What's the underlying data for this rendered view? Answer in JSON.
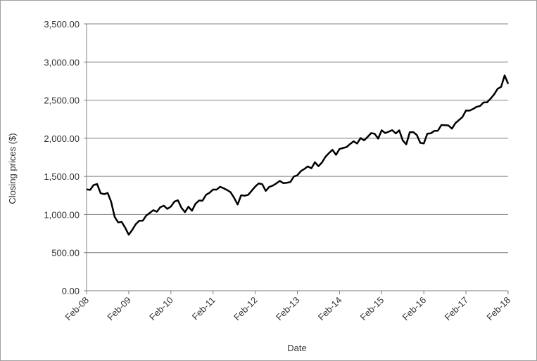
{
  "chart_data": {
    "type": "line",
    "x_label": "Date",
    "y_label": "Closing  prices ($)",
    "color": "#000000",
    "grid": true,
    "categories": [
      "Feb-08",
      null,
      null,
      null,
      null,
      null,
      null,
      null,
      null,
      null,
      null,
      null,
      "Feb-09",
      null,
      null,
      null,
      null,
      null,
      null,
      null,
      null,
      null,
      null,
      null,
      "Feb-10",
      null,
      null,
      null,
      null,
      null,
      null,
      null,
      null,
      null,
      null,
      null,
      "Feb-11",
      null,
      null,
      null,
      null,
      null,
      null,
      null,
      null,
      null,
      null,
      null,
      "Feb-12",
      null,
      null,
      null,
      null,
      null,
      null,
      null,
      null,
      null,
      null,
      null,
      "Feb-13",
      null,
      null,
      null,
      null,
      null,
      null,
      null,
      null,
      null,
      null,
      null,
      "Feb-14",
      null,
      null,
      null,
      null,
      null,
      null,
      null,
      null,
      null,
      null,
      null,
      "Feb-15",
      null,
      null,
      null,
      null,
      null,
      null,
      null,
      null,
      null,
      null,
      null,
      "Feb-16",
      null,
      null,
      null,
      null,
      null,
      null,
      null,
      null,
      null,
      null,
      null,
      "Feb-17",
      null,
      null,
      null,
      null,
      null,
      null,
      null,
      null,
      null,
      null,
      null,
      "Feb-18"
    ],
    "values": [
      1330,
      1323,
      1386,
      1400,
      1280,
      1267,
      1283,
      1166,
      969,
      896,
      903,
      826,
      735,
      798,
      873,
      919,
      919,
      987,
      1021,
      1057,
      1036,
      1096,
      1115,
      1074,
      1104,
      1169,
      1187,
      1089,
      1031,
      1102,
      1049,
      1141,
      1183,
      1181,
      1258,
      1286,
      1327,
      1326,
      1364,
      1345,
      1321,
      1292,
      1219,
      1131,
      1253,
      1247,
      1258,
      1312,
      1366,
      1408,
      1398,
      1310,
      1362,
      1379,
      1407,
      1441,
      1412,
      1416,
      1426,
      1498,
      1515,
      1569,
      1598,
      1631,
      1606,
      1686,
      1633,
      1682,
      1757,
      1806,
      1848,
      1783,
      1859,
      1872,
      1884,
      1924,
      1960,
      1931,
      2003,
      1972,
      2018,
      2068,
      2059,
      1995,
      2105,
      2068,
      2086,
      2107,
      2063,
      2104,
      1972,
      1920,
      2079,
      2080,
      2044,
      1940,
      1932,
      2060,
      2065,
      2097,
      2099,
      2174,
      2171,
      2168,
      2126,
      2199,
      2239,
      2279,
      2364,
      2363,
      2384,
      2412,
      2423,
      2470,
      2472,
      2519,
      2575,
      2648,
      2674,
      2824,
      2714
    ],
    "ylim": [
      0,
      3500
    ],
    "yticks": [
      {
        "value": 0,
        "label": "0.00"
      },
      {
        "value": 500,
        "label": "500.00"
      },
      {
        "value": 1000,
        "label": "1,000.00"
      },
      {
        "value": 1500,
        "label": "1,500.00"
      },
      {
        "value": 2000,
        "label": "2,000.00"
      },
      {
        "value": 2500,
        "label": "2,500.00"
      },
      {
        "value": 3000,
        "label": "3,000.00"
      },
      {
        "value": 3500,
        "label": "3,500.00"
      }
    ]
  }
}
